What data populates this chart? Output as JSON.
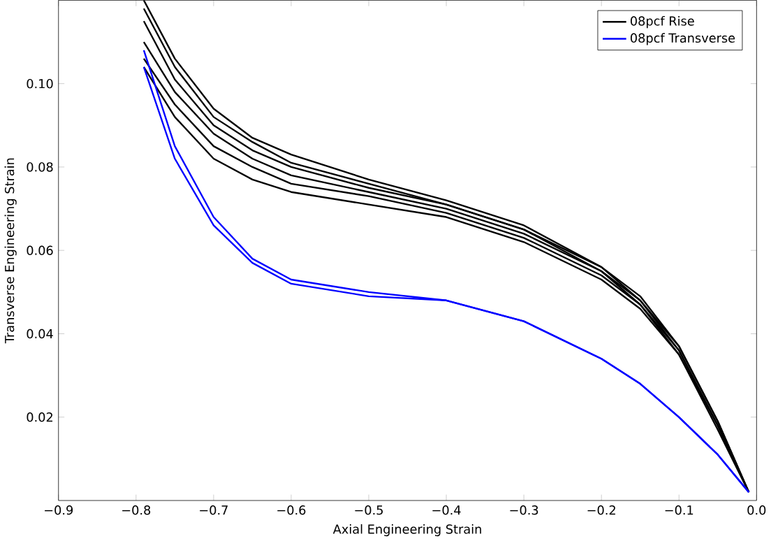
{
  "chart_data": {
    "type": "line",
    "xlabel": "Axial Engineering Strain",
    "ylabel": "Transverse Engineering Strain",
    "xlim": [
      -0.9,
      0.0
    ],
    "ylim": [
      0,
      0.12
    ],
    "xticks": [
      {
        "value": -0.9,
        "label": "−0.9"
      },
      {
        "value": -0.8,
        "label": "−0.8"
      },
      {
        "value": -0.7,
        "label": "−0.7"
      },
      {
        "value": -0.6,
        "label": "−0.6"
      },
      {
        "value": -0.5,
        "label": "−0.5"
      },
      {
        "value": -0.4,
        "label": "−0.4"
      },
      {
        "value": -0.3,
        "label": "−0.3"
      },
      {
        "value": -0.2,
        "label": "−0.2"
      },
      {
        "value": -0.1,
        "label": "−0.1"
      },
      {
        "value": 0.0,
        "label": "0.0"
      }
    ],
    "yticks": [
      {
        "value": 0.02,
        "label": "0.02"
      },
      {
        "value": 0.04,
        "label": "0.04"
      },
      {
        "value": 0.06,
        "label": "0.06"
      },
      {
        "value": 0.08,
        "label": "0.08"
      },
      {
        "value": 0.1,
        "label": "0.10"
      }
    ],
    "x": [
      -0.79,
      -0.75,
      -0.7,
      -0.65,
      -0.6,
      -0.5,
      -0.4,
      -0.3,
      -0.2,
      -0.15,
      -0.1,
      -0.05,
      -0.01
    ],
    "legend": "top right",
    "grid": false,
    "marker": "none",
    "line_style": "solid",
    "series": [
      {
        "name": "08pcf Rise",
        "color": "#000000",
        "values": [
          0.12,
          0.106,
          0.094,
          0.087,
          0.083,
          0.077,
          0.072,
          0.066,
          0.056,
          0.049,
          0.037,
          0.019,
          0.002
        ]
      },
      {
        "color": "#000000",
        "values": [
          0.118,
          0.104,
          0.092,
          0.086,
          0.081,
          0.076,
          0.071,
          0.065,
          0.056,
          0.048,
          0.037,
          0.019,
          0.002
        ]
      },
      {
        "color": "#000000",
        "values": [
          0.115,
          0.101,
          0.09,
          0.084,
          0.08,
          0.075,
          0.071,
          0.065,
          0.055,
          0.048,
          0.036,
          0.018,
          0.002
        ]
      },
      {
        "color": "#000000",
        "values": [
          0.11,
          0.098,
          0.088,
          0.082,
          0.078,
          0.074,
          0.07,
          0.064,
          0.055,
          0.047,
          0.036,
          0.018,
          0.002
        ]
      },
      {
        "color": "#000000",
        "values": [
          0.106,
          0.095,
          0.085,
          0.08,
          0.076,
          0.073,
          0.069,
          0.063,
          0.054,
          0.047,
          0.035,
          0.018,
          0.002
        ]
      },
      {
        "color": "#000000",
        "values": [
          0.104,
          0.092,
          0.082,
          0.077,
          0.074,
          0.071,
          0.068,
          0.062,
          0.053,
          0.046,
          0.035,
          0.017,
          0.002
        ]
      },
      {
        "name": "08pcf Transverse",
        "color": "#0000ff",
        "values": [
          0.108,
          0.085,
          0.068,
          0.058,
          0.053,
          0.05,
          0.048,
          0.043,
          0.034,
          0.028,
          0.02,
          0.011,
          0.002
        ]
      },
      {
        "color": "#0000ff",
        "values": [
          0.104,
          0.082,
          0.066,
          0.057,
          0.052,
          0.049,
          0.048,
          0.043,
          0.034,
          0.028,
          0.02,
          0.011,
          0.002
        ]
      }
    ]
  }
}
